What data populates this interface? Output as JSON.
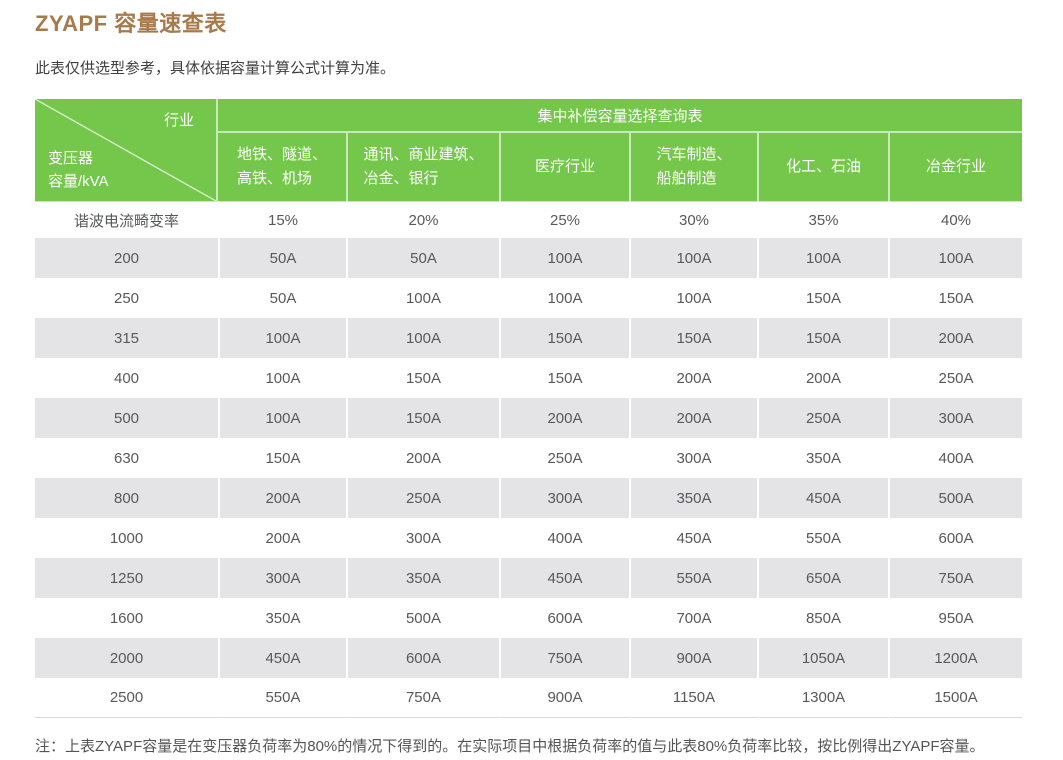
{
  "page": {
    "title": "ZYAPF 容量速查表",
    "subtitle": "此表仅供选型参考，具体依据容量计算公式计算为准。",
    "note": "注：上表ZYAPF容量是在变压器负荷率为80%的情况下得到的。在实际项目中根据负荷率的值与此表80%负荷率比较，按比例得出ZYAPF容量。"
  },
  "colors": {
    "title_color": "#a87a4b",
    "header_green": "#75c74b",
    "header_text": "#ffffff",
    "row_gray": "#e4e4e7",
    "text_dark": "#58595b",
    "hairline": "#d9d9d9"
  },
  "table": {
    "corner": {
      "top_right": "行业",
      "bottom_left_line1": "变压器",
      "bottom_left_line2": "容量/kVA"
    },
    "group_header": "集中补偿容量选择查询表",
    "columns": [
      {
        "lines": [
          "地铁、隧道、",
          "高铁、机场"
        ]
      },
      {
        "lines": [
          "通讯、商业建筑、",
          "冶金、银行"
        ]
      },
      {
        "lines": [
          "医疗行业"
        ]
      },
      {
        "lines": [
          "汽车制造、",
          "船舶制造"
        ]
      },
      {
        "lines": [
          "化工、石油"
        ]
      },
      {
        "lines": [
          "冶金行业"
        ]
      }
    ],
    "distortion_row": {
      "label": "谐波电流畸变率",
      "values": [
        "15%",
        "20%",
        "25%",
        "30%",
        "35%",
        "40%"
      ]
    },
    "rows": [
      {
        "kva": "200",
        "values": [
          "50A",
          "50A",
          "100A",
          "100A",
          "100A",
          "100A"
        ]
      },
      {
        "kva": "250",
        "values": [
          "50A",
          "100A",
          "100A",
          "100A",
          "150A",
          "150A"
        ]
      },
      {
        "kva": "315",
        "values": [
          "100A",
          "100A",
          "150A",
          "150A",
          "150A",
          "200A"
        ]
      },
      {
        "kva": "400",
        "values": [
          "100A",
          "150A",
          "150A",
          "200A",
          "200A",
          "250A"
        ]
      },
      {
        "kva": "500",
        "values": [
          "100A",
          "150A",
          "200A",
          "200A",
          "250A",
          "300A"
        ]
      },
      {
        "kva": "630",
        "values": [
          "150A",
          "200A",
          "250A",
          "300A",
          "350A",
          "400A"
        ]
      },
      {
        "kva": "800",
        "values": [
          "200A",
          "250A",
          "300A",
          "350A",
          "450A",
          "500A"
        ]
      },
      {
        "kva": "1000",
        "values": [
          "200A",
          "300A",
          "400A",
          "450A",
          "550A",
          "600A"
        ]
      },
      {
        "kva": "1250",
        "values": [
          "300A",
          "350A",
          "450A",
          "550A",
          "650A",
          "750A"
        ]
      },
      {
        "kva": "1600",
        "values": [
          "350A",
          "500A",
          "600A",
          "700A",
          "850A",
          "950A"
        ]
      },
      {
        "kva": "2000",
        "values": [
          "450A",
          "600A",
          "750A",
          "900A",
          "1050A",
          "1200A"
        ]
      },
      {
        "kva": "2500",
        "values": [
          "550A",
          "750A",
          "900A",
          "1150A",
          "1300A",
          "1500A"
        ]
      }
    ]
  }
}
